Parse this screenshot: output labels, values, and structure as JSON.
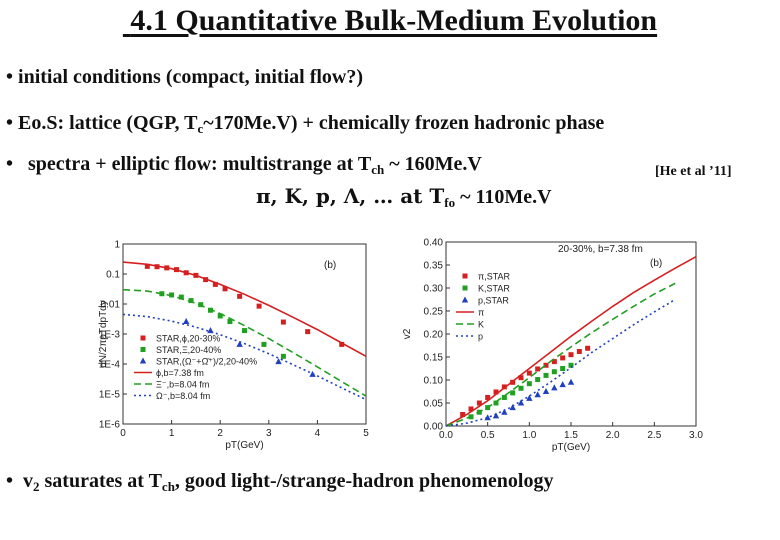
{
  "title": "4.1 Quantitative Bulk-Medium Evolution",
  "bullets": {
    "b1": "initial conditions (compact, initial flow?)",
    "b2_pre": "Eo.S:  lattice (QGP, T",
    "b2_sub": "c",
    "b2_post": "~170Me.V) + chemically frozen hadronic phase",
    "b3_pre": "spectra + elliptic flow:  multistrange at T",
    "b3_sub": "ch",
    "b3_post": " ~ 160Me.V",
    "b3b_pre": "π, K, p, Λ, … at T",
    "b3b_sub": "fo",
    "b3b_post": " ~ 110Me.V",
    "b4_pre": "v",
    "b4_sub": "2",
    "b4_mid": " saturates at T",
    "b4_sub2": "ch",
    "b4_post": ", good light-/strange-hadron phenomenology",
    "marker": "•"
  },
  "citation": "[He et al ’11]",
  "chart_data": [
    {
      "type": "scatter",
      "panel_label": "(b)",
      "xlabel": "pT(GeV)",
      "ylabel": "dN/2πpTdpTdy",
      "xlim": [
        0,
        5
      ],
      "ylim": [
        1e-06,
        1
      ],
      "yscale": "log",
      "xticks": [
        "0",
        "1",
        "2",
        "3",
        "4",
        "5"
      ],
      "yticks": [
        "1E-6",
        "1E-5",
        "1E-4",
        "1E-3",
        "0.01",
        "0.1",
        "1"
      ],
      "legend_position": "bottom-left",
      "series": [
        {
          "name": "STAR,ϕ,20-30%",
          "color": "#d62020",
          "marker": "square",
          "x": [
            0.5,
            0.7,
            0.9,
            1.1,
            1.3,
            1.5,
            1.7,
            1.9,
            2.1,
            2.4,
            2.8,
            3.3,
            3.8,
            4.5
          ],
          "y": [
            0.18,
            0.175,
            0.16,
            0.14,
            0.11,
            0.09,
            0.065,
            0.045,
            0.032,
            0.018,
            0.0085,
            0.0025,
            0.0012,
            0.00045
          ]
        },
        {
          "name": "STAR,Ξ,20-40%",
          "color": "#20a020",
          "marker": "square",
          "x": [
            0.8,
            1.0,
            1.2,
            1.4,
            1.6,
            1.8,
            2.0,
            2.2,
            2.5,
            2.9,
            3.3
          ],
          "y": [
            0.022,
            0.02,
            0.017,
            0.013,
            0.0095,
            0.0062,
            0.004,
            0.0026,
            0.0013,
            0.00045,
            0.00018
          ]
        },
        {
          "name": "STAR,(Ω⁻+Ω̄⁺)/2,20-40%",
          "color": "#2040c0",
          "marker": "triangle",
          "x": [
            1.3,
            1.8,
            2.4,
            3.2,
            3.9
          ],
          "y": [
            0.0026,
            0.0013,
            0.00045,
            0.00012,
            4.5e-05
          ]
        },
        {
          "name": "ϕ,b=7.38 fm",
          "color": "#d62020",
          "style": "solid",
          "x": [
            0,
            0.5,
            1,
            1.5,
            2,
            2.5,
            3,
            3.5,
            4,
            4.5,
            5
          ],
          "y": [
            0.25,
            0.21,
            0.15,
            0.09,
            0.045,
            0.021,
            0.009,
            0.0036,
            0.0014,
            0.0005,
            0.00018
          ]
        },
        {
          "name": "Ξ⁻,b=8.04 fm",
          "color": "#20a020",
          "style": "dashed",
          "x": [
            0,
            0.5,
            1,
            1.5,
            2,
            2.5,
            3,
            3.5,
            4,
            4.5,
            5
          ],
          "y": [
            0.03,
            0.027,
            0.019,
            0.0105,
            0.0048,
            0.0019,
            0.0007,
            0.00024,
            8e-05,
            2.6e-05,
            8.5e-06
          ]
        },
        {
          "name": "Ω⁻,b=8.04 fm",
          "color": "#2040c0",
          "style": "dotted",
          "x": [
            0,
            0.5,
            1,
            1.5,
            2,
            2.5,
            3,
            3.5,
            4,
            4.5,
            5
          ],
          "y": [
            0.0045,
            0.0038,
            0.0027,
            0.0017,
            0.00095,
            0.00048,
            0.00022,
            9.5e-05,
            4e-05,
            1.6e-05,
            6.5e-06
          ]
        }
      ]
    },
    {
      "type": "scatter",
      "panel_label": "(b)",
      "annotation": "20-30%, b=7.38 fm",
      "xlabel": "pT(GeV)",
      "ylabel": "v2",
      "xlim": [
        0,
        3.0
      ],
      "ylim": [
        0,
        0.4
      ],
      "xticks": [
        "0.0",
        "0.5",
        "1.0",
        "1.5",
        "2.0",
        "2.5",
        "3.0"
      ],
      "yticks": [
        "0.00",
        "0.05",
        "0.10",
        "0.15",
        "0.20",
        "0.25",
        "0.30",
        "0.35",
        "0.40"
      ],
      "legend_position": "top-right",
      "series": [
        {
          "name": "π,STAR",
          "color": "#d62020",
          "marker": "square",
          "x": [
            0.2,
            0.3,
            0.4,
            0.5,
            0.6,
            0.7,
            0.8,
            0.9,
            1.0,
            1.1,
            1.2,
            1.3,
            1.4,
            1.5,
            1.6,
            1.7
          ],
          "y": [
            0.025,
            0.037,
            0.05,
            0.062,
            0.074,
            0.085,
            0.095,
            0.105,
            0.115,
            0.124,
            0.132,
            0.14,
            0.148,
            0.155,
            0.162,
            0.169
          ]
        },
        {
          "name": "K,STAR",
          "color": "#20a020",
          "marker": "square",
          "x": [
            0.3,
            0.4,
            0.5,
            0.6,
            0.7,
            0.8,
            0.9,
            1.0,
            1.1,
            1.2,
            1.3,
            1.4,
            1.5
          ],
          "y": [
            0.02,
            0.03,
            0.04,
            0.05,
            0.062,
            0.072,
            0.082,
            0.092,
            0.101,
            0.11,
            0.118,
            0.125,
            0.132
          ]
        },
        {
          "name": "p,STAR",
          "color": "#2040c0",
          "marker": "triangle",
          "x": [
            0.5,
            0.6,
            0.7,
            0.8,
            0.9,
            1.0,
            1.1,
            1.2,
            1.3,
            1.4,
            1.5
          ],
          "y": [
            0.018,
            0.022,
            0.03,
            0.04,
            0.05,
            0.06,
            0.068,
            0.075,
            0.083,
            0.09,
            0.095
          ]
        },
        {
          "name": "π",
          "color": "#d62020",
          "style": "solid",
          "x": [
            0,
            0.25,
            0.5,
            0.75,
            1.0,
            1.25,
            1.5,
            1.75,
            2.0,
            2.25,
            2.5,
            2.75,
            3.0
          ],
          "y": [
            0,
            0.025,
            0.055,
            0.09,
            0.125,
            0.16,
            0.195,
            0.228,
            0.26,
            0.29,
            0.317,
            0.343,
            0.368
          ]
        },
        {
          "name": "K",
          "color": "#20a020",
          "style": "dashed",
          "x": [
            0,
            0.25,
            0.5,
            0.75,
            1.0,
            1.25,
            1.5,
            1.75,
            2.0,
            2.25,
            2.5,
            2.75
          ],
          "y": [
            0,
            0.017,
            0.04,
            0.072,
            0.105,
            0.14,
            0.172,
            0.203,
            0.232,
            0.26,
            0.287,
            0.31
          ]
        },
        {
          "name": "p",
          "color": "#2040c0",
          "style": "dotted",
          "x": [
            0,
            0.25,
            0.5,
            0.75,
            1.0,
            1.25,
            1.5,
            1.75,
            2.0,
            2.25,
            2.5,
            2.75
          ],
          "y": [
            0,
            0.006,
            0.018,
            0.038,
            0.065,
            0.095,
            0.127,
            0.16,
            0.19,
            0.22,
            0.248,
            0.275
          ]
        }
      ]
    }
  ]
}
